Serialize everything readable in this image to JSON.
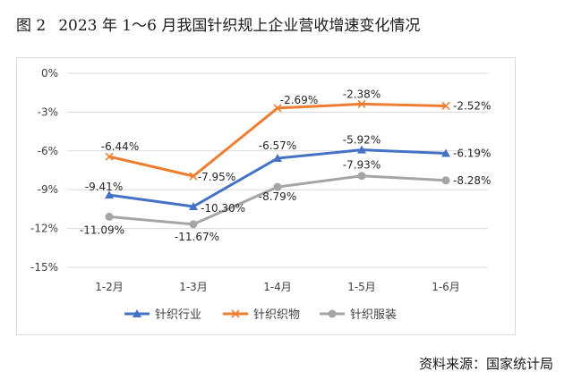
{
  "figure": {
    "label": "图 2",
    "title": "2023 年 1～6 月我国针织规上企业营收增速变化情况"
  },
  "source": "资料来源：国家统计局",
  "chart_data": {
    "type": "line",
    "title": "2023 年 1～6 月我国针织规上企业营收增速变化情况",
    "xlabel": "",
    "ylabel": "",
    "categories": [
      "1-2月",
      "1-3月",
      "1-4月",
      "1-5月",
      "1-6月"
    ],
    "ylim": [
      -15,
      0
    ],
    "yticks": [
      0,
      -3,
      -6,
      -9,
      -12,
      -15
    ],
    "ytick_labels": [
      "0%",
      "-3%",
      "-6%",
      "-9%",
      "-12%",
      "-15%"
    ],
    "grid": true,
    "legend_position": "bottom",
    "series": [
      {
        "name": "针织行业",
        "values": [
          -9.41,
          -10.3,
          -6.57,
          -5.92,
          -6.19
        ],
        "labels": [
          "-9.41%",
          "-10.30%",
          "-6.57%",
          "-5.92%",
          "-6.19%"
        ],
        "color": "#4472c4",
        "marker": "triangle"
      },
      {
        "name": "针织织物",
        "values": [
          -6.44,
          -7.95,
          -2.69,
          -2.38,
          -2.52
        ],
        "labels": [
          "-6.44%",
          "-7.95%",
          "-2.69%",
          "-2.38%",
          "-2.52%"
        ],
        "color": "#ed7d31",
        "marker": "x"
      },
      {
        "name": "针织服装",
        "values": [
          -11.09,
          -11.67,
          -8.79,
          -7.93,
          -8.28
        ],
        "labels": [
          "-11.09%",
          "-11.67%",
          "-8.79%",
          "-7.93%",
          "-8.28%"
        ],
        "color": "#a5a5a5",
        "marker": "circle"
      }
    ]
  }
}
